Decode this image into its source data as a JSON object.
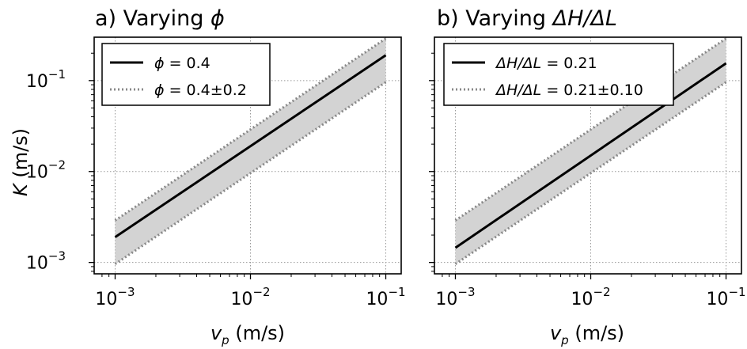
{
  "chart_data": [
    {
      "type": "line",
      "title": {
        "prefix": "a) Varying ",
        "symbol": "ϕ"
      },
      "xlabel": {
        "var": "v",
        "sub": "p",
        "unit": " (m/s)"
      },
      "ylabel": {
        "var": "K",
        "unit": " (m/s)"
      },
      "x_scale": "log",
      "y_scale": "log",
      "xlim": [
        0.0007,
        0.13
      ],
      "ylim": [
        0.00075,
        0.3
      ],
      "x_ticks": [
        {
          "value": 0.001,
          "base": "10",
          "exp": "−3"
        },
        {
          "value": 0.01,
          "base": "10",
          "exp": "−2"
        },
        {
          "value": 0.1,
          "base": "10",
          "exp": "−1"
        }
      ],
      "y_ticks": [
        {
          "value": 0.001,
          "base": "10",
          "exp": "−3"
        },
        {
          "value": 0.01,
          "base": "10",
          "exp": "−2"
        },
        {
          "value": 0.1,
          "base": "10",
          "exp": "−1"
        }
      ],
      "grid": true,
      "legend_position": "top-left",
      "series": [
        {
          "style": "solid",
          "color": "#000000",
          "x": [
            0.001,
            0.1
          ],
          "y": [
            0.0019,
            0.19
          ]
        },
        {
          "style": "dotted",
          "color": "#888888",
          "role": "upper bound",
          "x": [
            0.001,
            0.1
          ],
          "y": [
            0.0029,
            0.29
          ]
        },
        {
          "style": "dotted",
          "color": "#888888",
          "role": "lower bound",
          "x": [
            0.001,
            0.1
          ],
          "y": [
            0.00096,
            0.096
          ]
        }
      ],
      "band_fill": "#d3d3d3",
      "legend": [
        {
          "style": "solid",
          "var": "ϕ",
          "rest": " = 0.4"
        },
        {
          "style": "dotted",
          "var": "ϕ",
          "rest": " = 0.4±0.2"
        }
      ]
    },
    {
      "type": "line",
      "title": {
        "prefix": "b) Varying ",
        "symbol": "ΔH/ΔL"
      },
      "xlabel": {
        "var": "v",
        "sub": "p",
        "unit": " (m/s)"
      },
      "ylabel": null,
      "x_scale": "log",
      "y_scale": "log",
      "xlim": [
        0.0007,
        0.13
      ],
      "ylim": [
        0.00075,
        0.3
      ],
      "x_ticks": [
        {
          "value": 0.001,
          "base": "10",
          "exp": "−3"
        },
        {
          "value": 0.01,
          "base": "10",
          "exp": "−2"
        },
        {
          "value": 0.1,
          "base": "10",
          "exp": "−1"
        }
      ],
      "y_ticks": [
        {
          "value": 0.001
        },
        {
          "value": 0.01
        },
        {
          "value": 0.1
        }
      ],
      "grid": true,
      "legend_position": "top-left",
      "series": [
        {
          "style": "solid",
          "color": "#000000",
          "x": [
            0.001,
            0.1
          ],
          "y": [
            0.00145,
            0.155
          ]
        },
        {
          "style": "dotted",
          "color": "#888888",
          "role": "upper bound",
          "x": [
            0.001,
            0.1
          ],
          "y": [
            0.0029,
            0.29
          ]
        },
        {
          "style": "dotted",
          "color": "#888888",
          "role": "lower bound",
          "x": [
            0.001,
            0.1
          ],
          "y": [
            0.00096,
            0.096
          ]
        }
      ],
      "band_fill": "#d3d3d3",
      "legend": [
        {
          "style": "solid",
          "var": "ΔH/ΔL",
          "rest": " = 0.21"
        },
        {
          "style": "dotted",
          "var": "ΔH/ΔL",
          "rest": " = 0.21±0.10"
        }
      ]
    }
  ]
}
